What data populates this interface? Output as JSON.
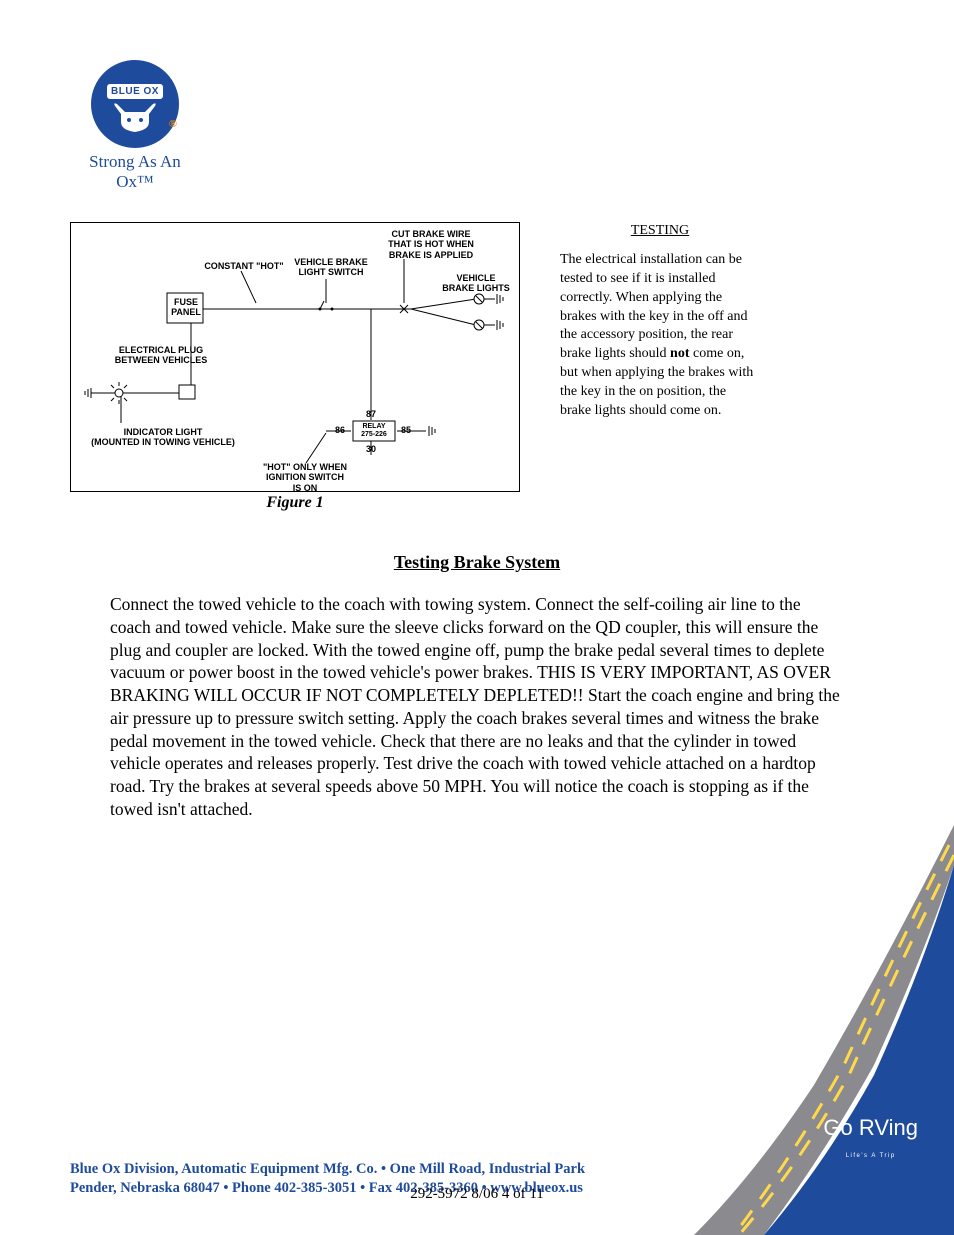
{
  "logo": {
    "brand": "BLUE OX",
    "reg_mark": "®",
    "tagline": "Strong As An Ox™"
  },
  "diagram": {
    "labels": {
      "cutwire": "CUT BRAKE WIRE\nTHAT IS HOT WHEN\nBRAKE IS APPLIED",
      "constant_hot": "CONSTANT \"HOT\"",
      "brake_switch": "VEHICLE BRAKE\nLIGHT SWITCH",
      "brake_lights": "VEHICLE\nBRAKE LIGHTS",
      "fuse_panel": "FUSE\nPANEL",
      "elec_plug": "ELECTRICAL PLUG\nBETWEEN VEHICLES",
      "indicator": "INDICATOR LIGHT\n(MOUNTED IN TOWING VEHICLE)",
      "hot_only": "\"HOT\" ONLY WHEN\nIGNITION SWITCH\nIS ON",
      "relay": "RELAY\n275-226",
      "pin_87": "87",
      "pin_86": "86",
      "pin_85": "85",
      "pin_30": "30"
    },
    "caption": "Figure 1"
  },
  "testing_sidebar": {
    "heading": "TESTING",
    "body_1": "The electrical installation can be tested to see if it is installed correctly.  When applying the brakes with the key in the off and the accessory position, the rear brake lights should ",
    "body_not": "not",
    "body_2": " come on, but when applying the brakes with the key in the on position, the brake lights should come on."
  },
  "section": {
    "title": "Testing Brake System",
    "body": "Connect the towed vehicle to the coach with towing system.  Connect the self-coiling air line to the coach and towed vehicle.  Make sure the sleeve clicks forward on the QD coupler, this will ensure the plug and coupler are locked.  With the towed engine off, pump the brake pedal several times to deplete vacuum or power boost in the towed vehicle's power brakes. THIS IS VERY IMPORTANT, AS OVER BRAKING WILL OCCUR IF NOT COMPLETELY DEPLETED!!  Start the coach engine and bring the air pressure up to pressure switch setting.  Apply the coach brakes several times and witness the brake pedal movement in the towed vehicle.  Check that there are no leaks and that the cylinder in towed vehicle operates and releases properly.  Test drive the coach with towed vehicle attached on a hardtop road.  Try the brakes at several speeds above 50 MPH.  You will notice the coach is stopping as if the towed isn't attached."
  },
  "footer": {
    "line1": "Blue Ox Division, Automatic Equipment Mfg. Co.   •   One Mill Road, Industrial Park",
    "line2": "Pender, Nebraska 68047   •   Phone 402-385-3051   •   Fax 402-385-3360   •   www.blueox.us",
    "pagenum": "292-5972  8/06  4 of 11"
  },
  "go_rving": {
    "main": "Go RVing",
    "sub": "Life's A Trip"
  },
  "colors": {
    "brand_blue": "#1e4b9b",
    "road_grey": "#8a8a8f",
    "road_yellow": "#ffd700",
    "orange": "#ff8a00"
  }
}
